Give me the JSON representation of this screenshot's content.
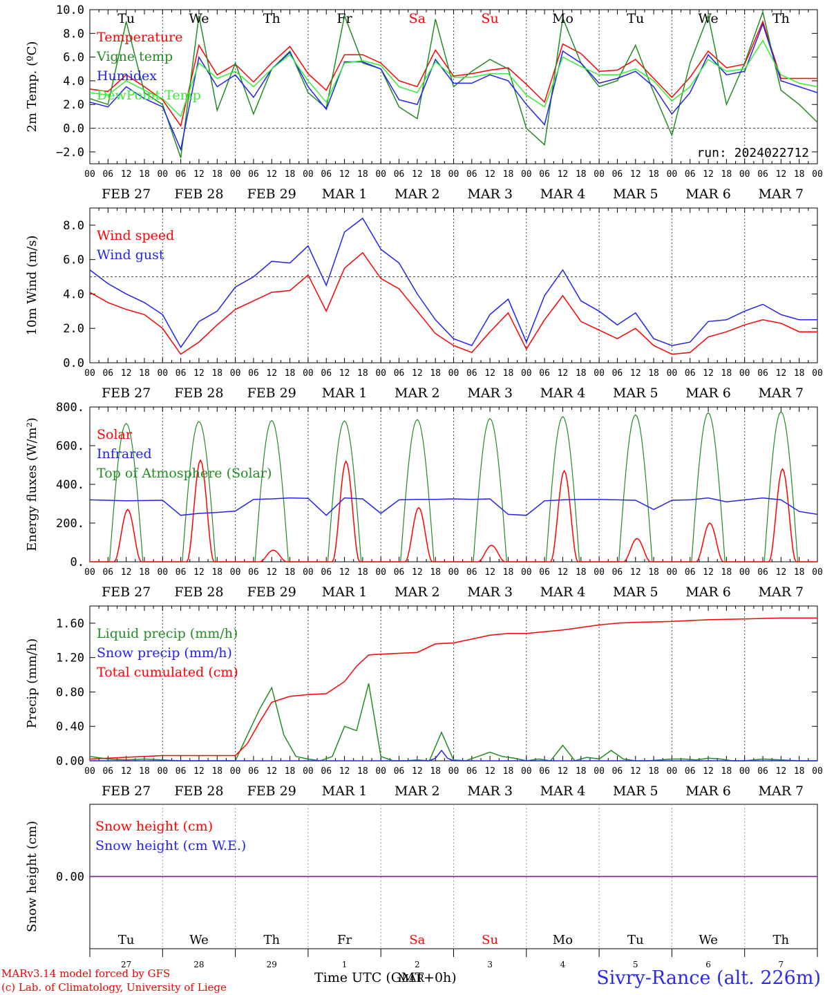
{
  "run_label": "run: 2024022712",
  "footer": {
    "model": "MARv3.14 model forced by GFS",
    "copyright": "(c) Lab. of Climatology, University of Liege",
    "time_label": "Time UTC (GMT+0h)",
    "location": "Sivry-Rance (alt. 226m)"
  },
  "colors": {
    "red": "#ff0000",
    "green": "#228b22",
    "blue": "#2222ee",
    "lightgreen": "#33ee33",
    "snow": "#7b2d8e"
  },
  "day_headers": [
    {
      "label": "Tu",
      "color": "#000000"
    },
    {
      "label": "We",
      "color": "#000000"
    },
    {
      "label": "Th",
      "color": "#000000"
    },
    {
      "label": "Fr",
      "color": "#000000"
    },
    {
      "label": "Sa",
      "color": "#ff0000"
    },
    {
      "label": "Su",
      "color": "#ff0000"
    },
    {
      "label": "Mo",
      "color": "#000000"
    },
    {
      "label": "Tu",
      "color": "#000000"
    },
    {
      "label": "We",
      "color": "#000000"
    },
    {
      "label": "Th",
      "color": "#000000"
    }
  ],
  "date_labels": [
    "FEB 27",
    "FEB 28",
    "FEB 29",
    "MAR  1",
    "MAR  2",
    "MAR  3",
    "MAR  4",
    "MAR  5",
    "MAR  6",
    "MAR  7"
  ],
  "hour_labels": [
    "00",
    "06",
    "12",
    "18"
  ],
  "bottom_day_numbers": [
    "27",
    "28",
    "29",
    "1",
    "2",
    "3",
    "4",
    "5",
    "6",
    "7"
  ],
  "bottom_month": "MAR",
  "chart_data": [
    {
      "type": "line",
      "ylabel": "2m Temp. (ºC)",
      "ylim": [
        -3,
        10
      ],
      "yticks": [
        "10.0",
        "8.0",
        "6.0",
        "4.0",
        "2.0",
        "0.0",
        "−2.0"
      ],
      "ytick_values": [
        10,
        8,
        6,
        4,
        2,
        0,
        -2
      ],
      "ref_line": 0,
      "x_unit": "hours since FEB 27 00 UTC",
      "legend": [
        "Temperature",
        "Vigne temp",
        "Humidex",
        "DewPoint Temp"
      ],
      "series": [
        {
          "name": "Temperature",
          "color": "#ff0000",
          "x": [
            0,
            6,
            12,
            18,
            24,
            30,
            36,
            42,
            48,
            54,
            60,
            66,
            72,
            78,
            84,
            90,
            96,
            102,
            108,
            114,
            120,
            126,
            132,
            138,
            144,
            150,
            156,
            162,
            168,
            174,
            180,
            186,
            192,
            198,
            204,
            210,
            216,
            222,
            228,
            234,
            240
          ],
          "y": [
            3.3,
            3.1,
            4.5,
            3.5,
            2.4,
            0.2,
            7.0,
            4.5,
            5.4,
            3.9,
            5.5,
            6.9,
            4.6,
            3.2,
            6.2,
            6.2,
            5.5,
            4.0,
            3.5,
            6.6,
            4.4,
            4.6,
            4.9,
            5.1,
            3.7,
            2.2,
            7.1,
            6.3,
            4.8,
            4.9,
            5.8,
            4.2,
            2.6,
            4.3,
            6.5,
            5.1,
            5.4,
            9.0,
            4.2,
            4.2,
            4.2
          ]
        },
        {
          "name": "Vigne temp",
          "color": "#228b22",
          "x": [
            0,
            6,
            12,
            18,
            24,
            30,
            36,
            42,
            48,
            54,
            60,
            66,
            72,
            78,
            84,
            90,
            96,
            102,
            108,
            114,
            120,
            126,
            132,
            138,
            144,
            150,
            156,
            162,
            168,
            174,
            180,
            186,
            192,
            198,
            204,
            210,
            216,
            222,
            228,
            234,
            240
          ],
          "y": [
            2.5,
            2.0,
            9.0,
            3.0,
            2.0,
            -2.5,
            9.5,
            1.5,
            5.5,
            1.2,
            5.0,
            6.5,
            3.0,
            1.7,
            9.5,
            5.5,
            5.0,
            1.8,
            0.8,
            9.2,
            3.5,
            4.8,
            5.8,
            5.0,
            0.0,
            -1.4,
            9.3,
            5.5,
            3.5,
            4.0,
            7.0,
            3.0,
            -0.6,
            5.5,
            9.5,
            2.0,
            5.5,
            9.8,
            3.2,
            2.0,
            0.5
          ]
        },
        {
          "name": "Humidex",
          "color": "#2222ee",
          "x": [
            0,
            6,
            12,
            18,
            24,
            30,
            36,
            42,
            48,
            54,
            60,
            66,
            72,
            78,
            84,
            90,
            96,
            102,
            108,
            114,
            120,
            126,
            132,
            138,
            144,
            150,
            156,
            162,
            168,
            174,
            180,
            186,
            192,
            198,
            204,
            210,
            216,
            222,
            228,
            234,
            240
          ],
          "y": [
            2.2,
            1.8,
            3.5,
            2.5,
            1.8,
            -1.8,
            6.0,
            3.5,
            4.5,
            2.6,
            5.0,
            6.4,
            3.5,
            1.6,
            5.6,
            5.6,
            5.0,
            2.4,
            2.0,
            5.8,
            3.8,
            3.8,
            4.5,
            4.0,
            2.0,
            0.3,
            6.5,
            5.5,
            3.8,
            4.2,
            4.8,
            3.5,
            1.2,
            3.0,
            6.2,
            4.5,
            4.8,
            8.8,
            4.0,
            3.5,
            3.0
          ]
        },
        {
          "name": "DewPoint Temp",
          "color": "#33ee33",
          "x": [
            0,
            6,
            12,
            18,
            24,
            30,
            36,
            42,
            48,
            54,
            60,
            66,
            72,
            78,
            84,
            90,
            96,
            102,
            108,
            114,
            120,
            126,
            132,
            138,
            144,
            150,
            156,
            162,
            168,
            174,
            180,
            186,
            192,
            198,
            204,
            210,
            216,
            222,
            228,
            234,
            240
          ],
          "y": [
            3.0,
            2.8,
            4.0,
            3.2,
            2.5,
            1.0,
            5.5,
            4.2,
            4.8,
            3.5,
            5.0,
            6.2,
            4.0,
            2.2,
            5.5,
            5.7,
            5.3,
            3.5,
            3.0,
            5.6,
            4.3,
            4.3,
            4.6,
            4.6,
            2.8,
            1.8,
            6.0,
            5.2,
            4.5,
            4.5,
            5.0,
            4.0,
            2.3,
            3.5,
            5.8,
            4.8,
            5.0,
            7.4,
            4.5,
            3.8,
            3.5
          ]
        }
      ]
    },
    {
      "type": "line",
      "ylabel": "10m Wind (m/s)",
      "ylim": [
        0,
        9
      ],
      "yticks": [
        "8.0",
        "6.0",
        "4.0",
        "2.0",
        "0.0"
      ],
      "ytick_values": [
        8,
        6,
        4,
        2,
        0
      ],
      "ref_line": 5,
      "legend": [
        "Wind speed",
        "Wind gust"
      ],
      "series": [
        {
          "name": "Wind speed",
          "color": "#ff0000",
          "x": [
            0,
            6,
            12,
            18,
            24,
            30,
            36,
            42,
            48,
            54,
            60,
            66,
            72,
            78,
            84,
            90,
            96,
            102,
            108,
            114,
            120,
            126,
            132,
            138,
            144,
            150,
            156,
            162,
            168,
            174,
            180,
            186,
            192,
            198,
            204,
            210,
            216,
            222,
            228,
            234,
            240
          ],
          "y": [
            4.1,
            3.5,
            3.1,
            2.8,
            2.0,
            0.5,
            1.2,
            2.2,
            3.1,
            3.6,
            4.1,
            4.2,
            5.1,
            3.0,
            5.5,
            6.4,
            4.9,
            4.3,
            3.0,
            1.7,
            1.0,
            0.6,
            1.8,
            2.9,
            0.8,
            2.5,
            3.9,
            2.4,
            1.9,
            1.4,
            2.0,
            1.0,
            0.5,
            0.6,
            1.5,
            1.8,
            2.2,
            2.5,
            2.3,
            1.8,
            1.8
          ]
        },
        {
          "name": "Wind gust",
          "color": "#2222ee",
          "x": [
            0,
            6,
            12,
            18,
            24,
            30,
            36,
            42,
            48,
            54,
            60,
            66,
            72,
            78,
            84,
            90,
            96,
            102,
            108,
            114,
            120,
            126,
            132,
            138,
            144,
            150,
            156,
            162,
            168,
            174,
            180,
            186,
            192,
            198,
            204,
            210,
            216,
            222,
            228,
            234,
            240
          ],
          "y": [
            5.4,
            4.6,
            4.0,
            3.5,
            2.8,
            0.9,
            2.4,
            3.0,
            4.4,
            5.0,
            5.9,
            5.8,
            6.8,
            4.5,
            7.6,
            8.4,
            6.6,
            5.8,
            4.0,
            2.5,
            1.4,
            1.0,
            2.8,
            3.7,
            1.2,
            3.9,
            5.4,
            3.6,
            3.0,
            2.2,
            2.9,
            1.4,
            1.0,
            1.2,
            2.4,
            2.5,
            3.0,
            3.4,
            2.8,
            2.5,
            2.5
          ]
        }
      ]
    },
    {
      "type": "line",
      "ylabel": "Energy fluxes (W/m²)",
      "ylim": [
        0,
        800
      ],
      "yticks": [
        "800.",
        "600.",
        "400.",
        "200.",
        "0."
      ],
      "ytick_values": [
        800,
        600,
        400,
        200,
        0
      ],
      "legend": [
        "Solar",
        "Infrared",
        "Top of Atmosphere (Solar)"
      ],
      "toa_peaks": [
        715,
        725,
        730,
        728,
        735,
        740,
        750,
        760,
        770,
        775
      ],
      "solar_peaks": [
        270,
        525,
        60,
        520,
        280,
        85,
        470,
        120,
        200,
        480
      ],
      "series": [
        {
          "name": "Infrared",
          "color": "#2222ee",
          "x": [
            0,
            12,
            24,
            30,
            36,
            42,
            48,
            54,
            60,
            66,
            72,
            78,
            84,
            90,
            96,
            102,
            108,
            114,
            120,
            126,
            132,
            138,
            144,
            150,
            156,
            162,
            168,
            174,
            180,
            186,
            192,
            198,
            204,
            210,
            216,
            222,
            228,
            234,
            240
          ],
          "y": [
            320,
            315,
            318,
            240,
            250,
            255,
            262,
            322,
            325,
            330,
            328,
            240,
            330,
            325,
            250,
            320,
            322,
            322,
            325,
            322,
            325,
            245,
            240,
            315,
            320,
            322,
            322,
            320,
            318,
            270,
            318,
            320,
            330,
            310,
            320,
            330,
            320,
            260,
            245
          ]
        }
      ]
    },
    {
      "type": "line",
      "ylabel": "Precip (mm/h)",
      "ylim": [
        0,
        1.8
      ],
      "yticks": [
        "1.60",
        "1.20",
        "0.80",
        "0.40",
        "0.00"
      ],
      "ytick_values": [
        1.6,
        1.2,
        0.8,
        0.4,
        0
      ],
      "legend": [
        "Liquid precip (mm/h)",
        "Snow precip (mm/h)",
        "Total cumulated (cm)"
      ],
      "series": [
        {
          "name": "Liquid precip (mm/h)",
          "color": "#228b22",
          "x": [
            0,
            6,
            12,
            18,
            24,
            30,
            36,
            42,
            48,
            52,
            56,
            60,
            64,
            68,
            72,
            76,
            80,
            84,
            88,
            92,
            96,
            100,
            104,
            108,
            112,
            116,
            120,
            124,
            128,
            132,
            136,
            140,
            144,
            148,
            152,
            156,
            160,
            164,
            168,
            172,
            176,
            180,
            184,
            188,
            192,
            196,
            200,
            204,
            208,
            212,
            216,
            222,
            228,
            234,
            240
          ],
          "y": [
            0.05,
            0.02,
            0.01,
            0.02,
            0.01,
            0.0,
            0.0,
            0.0,
            0.0,
            0.3,
            0.6,
            0.85,
            0.3,
            0.05,
            0.02,
            0.0,
            0.05,
            0.4,
            0.35,
            0.9,
            0.05,
            0.0,
            0.0,
            0.01,
            0.0,
            0.33,
            0.01,
            0.0,
            0.05,
            0.1,
            0.05,
            0.03,
            0.0,
            0.02,
            0.0,
            0.18,
            0.0,
            0.04,
            0.02,
            0.12,
            0.02,
            0.0,
            0.0,
            0.01,
            0.02,
            0.02,
            0.01,
            0.03,
            0.02,
            0.0,
            0.0,
            0.02,
            0.01,
            0.0,
            0.0
          ]
        },
        {
          "name": "Snow precip (mm/h)",
          "color": "#2222ee",
          "x": [
            0,
            112,
            114,
            116,
            118,
            120,
            240
          ],
          "y": [
            0.0,
            0.0,
            0.03,
            0.12,
            0.03,
            0.0,
            0.0
          ]
        },
        {
          "name": "Total cumulated (cm)",
          "color": "#ff0000",
          "x": [
            0,
            6,
            12,
            24,
            36,
            48,
            52,
            56,
            60,
            66,
            72,
            78,
            84,
            88,
            92,
            96,
            108,
            114,
            120,
            132,
            138,
            144,
            156,
            162,
            168,
            174,
            180,
            192,
            204,
            216,
            228,
            240
          ],
          "y": [
            0.02,
            0.03,
            0.04,
            0.06,
            0.06,
            0.06,
            0.2,
            0.45,
            0.68,
            0.75,
            0.77,
            0.78,
            0.92,
            1.1,
            1.23,
            1.24,
            1.26,
            1.36,
            1.37,
            1.46,
            1.48,
            1.48,
            1.52,
            1.55,
            1.58,
            1.6,
            1.61,
            1.62,
            1.64,
            1.65,
            1.66,
            1.66
          ]
        }
      ]
    },
    {
      "type": "line",
      "ylabel": "Snow height (cm)",
      "ylim": [
        -1,
        1
      ],
      "yticks": [
        "0.00"
      ],
      "ytick_values": [
        0
      ],
      "legend": [
        "Snow height (cm)",
        "Snow height (cm W.E.)"
      ],
      "series": [
        {
          "name": "Snow height (cm)",
          "color": "#ff0000",
          "x": [
            0,
            240
          ],
          "y": [
            0,
            0
          ]
        },
        {
          "name": "Snow height (cm W.E.)",
          "color": "#2222ee",
          "x": [
            0,
            240
          ],
          "y": [
            0,
            0
          ]
        }
      ]
    }
  ]
}
